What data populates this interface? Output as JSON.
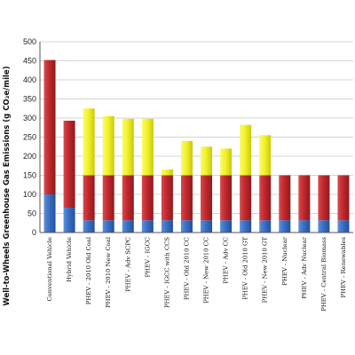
{
  "chart_data": {
    "type": "bar",
    "stacked": true,
    "title": "",
    "xlabel": "",
    "ylabel": "Well-to-Wheels Greenhouse Gas Emissions (g CO₂e/mile)",
    "ylim": [
      0,
      500
    ],
    "yticks": [
      0,
      50,
      100,
      150,
      200,
      250,
      300,
      350,
      400,
      450,
      500
    ],
    "grid": true,
    "legend": "none",
    "categories": [
      "Conventional Vehicle",
      "Hybrid Vehicle",
      "PHEV - 2010 Old Coal",
      "PHEV - 2010 New Coal",
      "PHEV - Adv SCPC",
      "PHEV - IGCC",
      "PHEV - IGCC with CCS",
      "PHEV - Old 2010 CC",
      "PHEV - New 2010 CC",
      "PHEV - Adv CC",
      "PHEV - Old 2010 GT",
      "PHEV - New 2010 GT",
      "PHEV - Nuclear",
      "PHEV - Adv Nuclear",
      "PHEV - Central Biomass",
      "PHEV - Renewables"
    ],
    "series": [
      {
        "color": "#3a6fc4",
        "values": [
          100,
          65,
          32,
          32,
          32,
          32,
          32,
          32,
          32,
          32,
          32,
          32,
          32,
          32,
          32,
          32
        ]
      },
      {
        "color": "#c0282d",
        "values": [
          352,
          228,
          118,
          118,
          118,
          118,
          118,
          118,
          118,
          118,
          118,
          118,
          118,
          118,
          118,
          118
        ]
      },
      {
        "color": "#f2f22a",
        "values": [
          0,
          0,
          175,
          155,
          148,
          148,
          15,
          90,
          75,
          70,
          132,
          105,
          0,
          0,
          0,
          0
        ]
      }
    ]
  }
}
